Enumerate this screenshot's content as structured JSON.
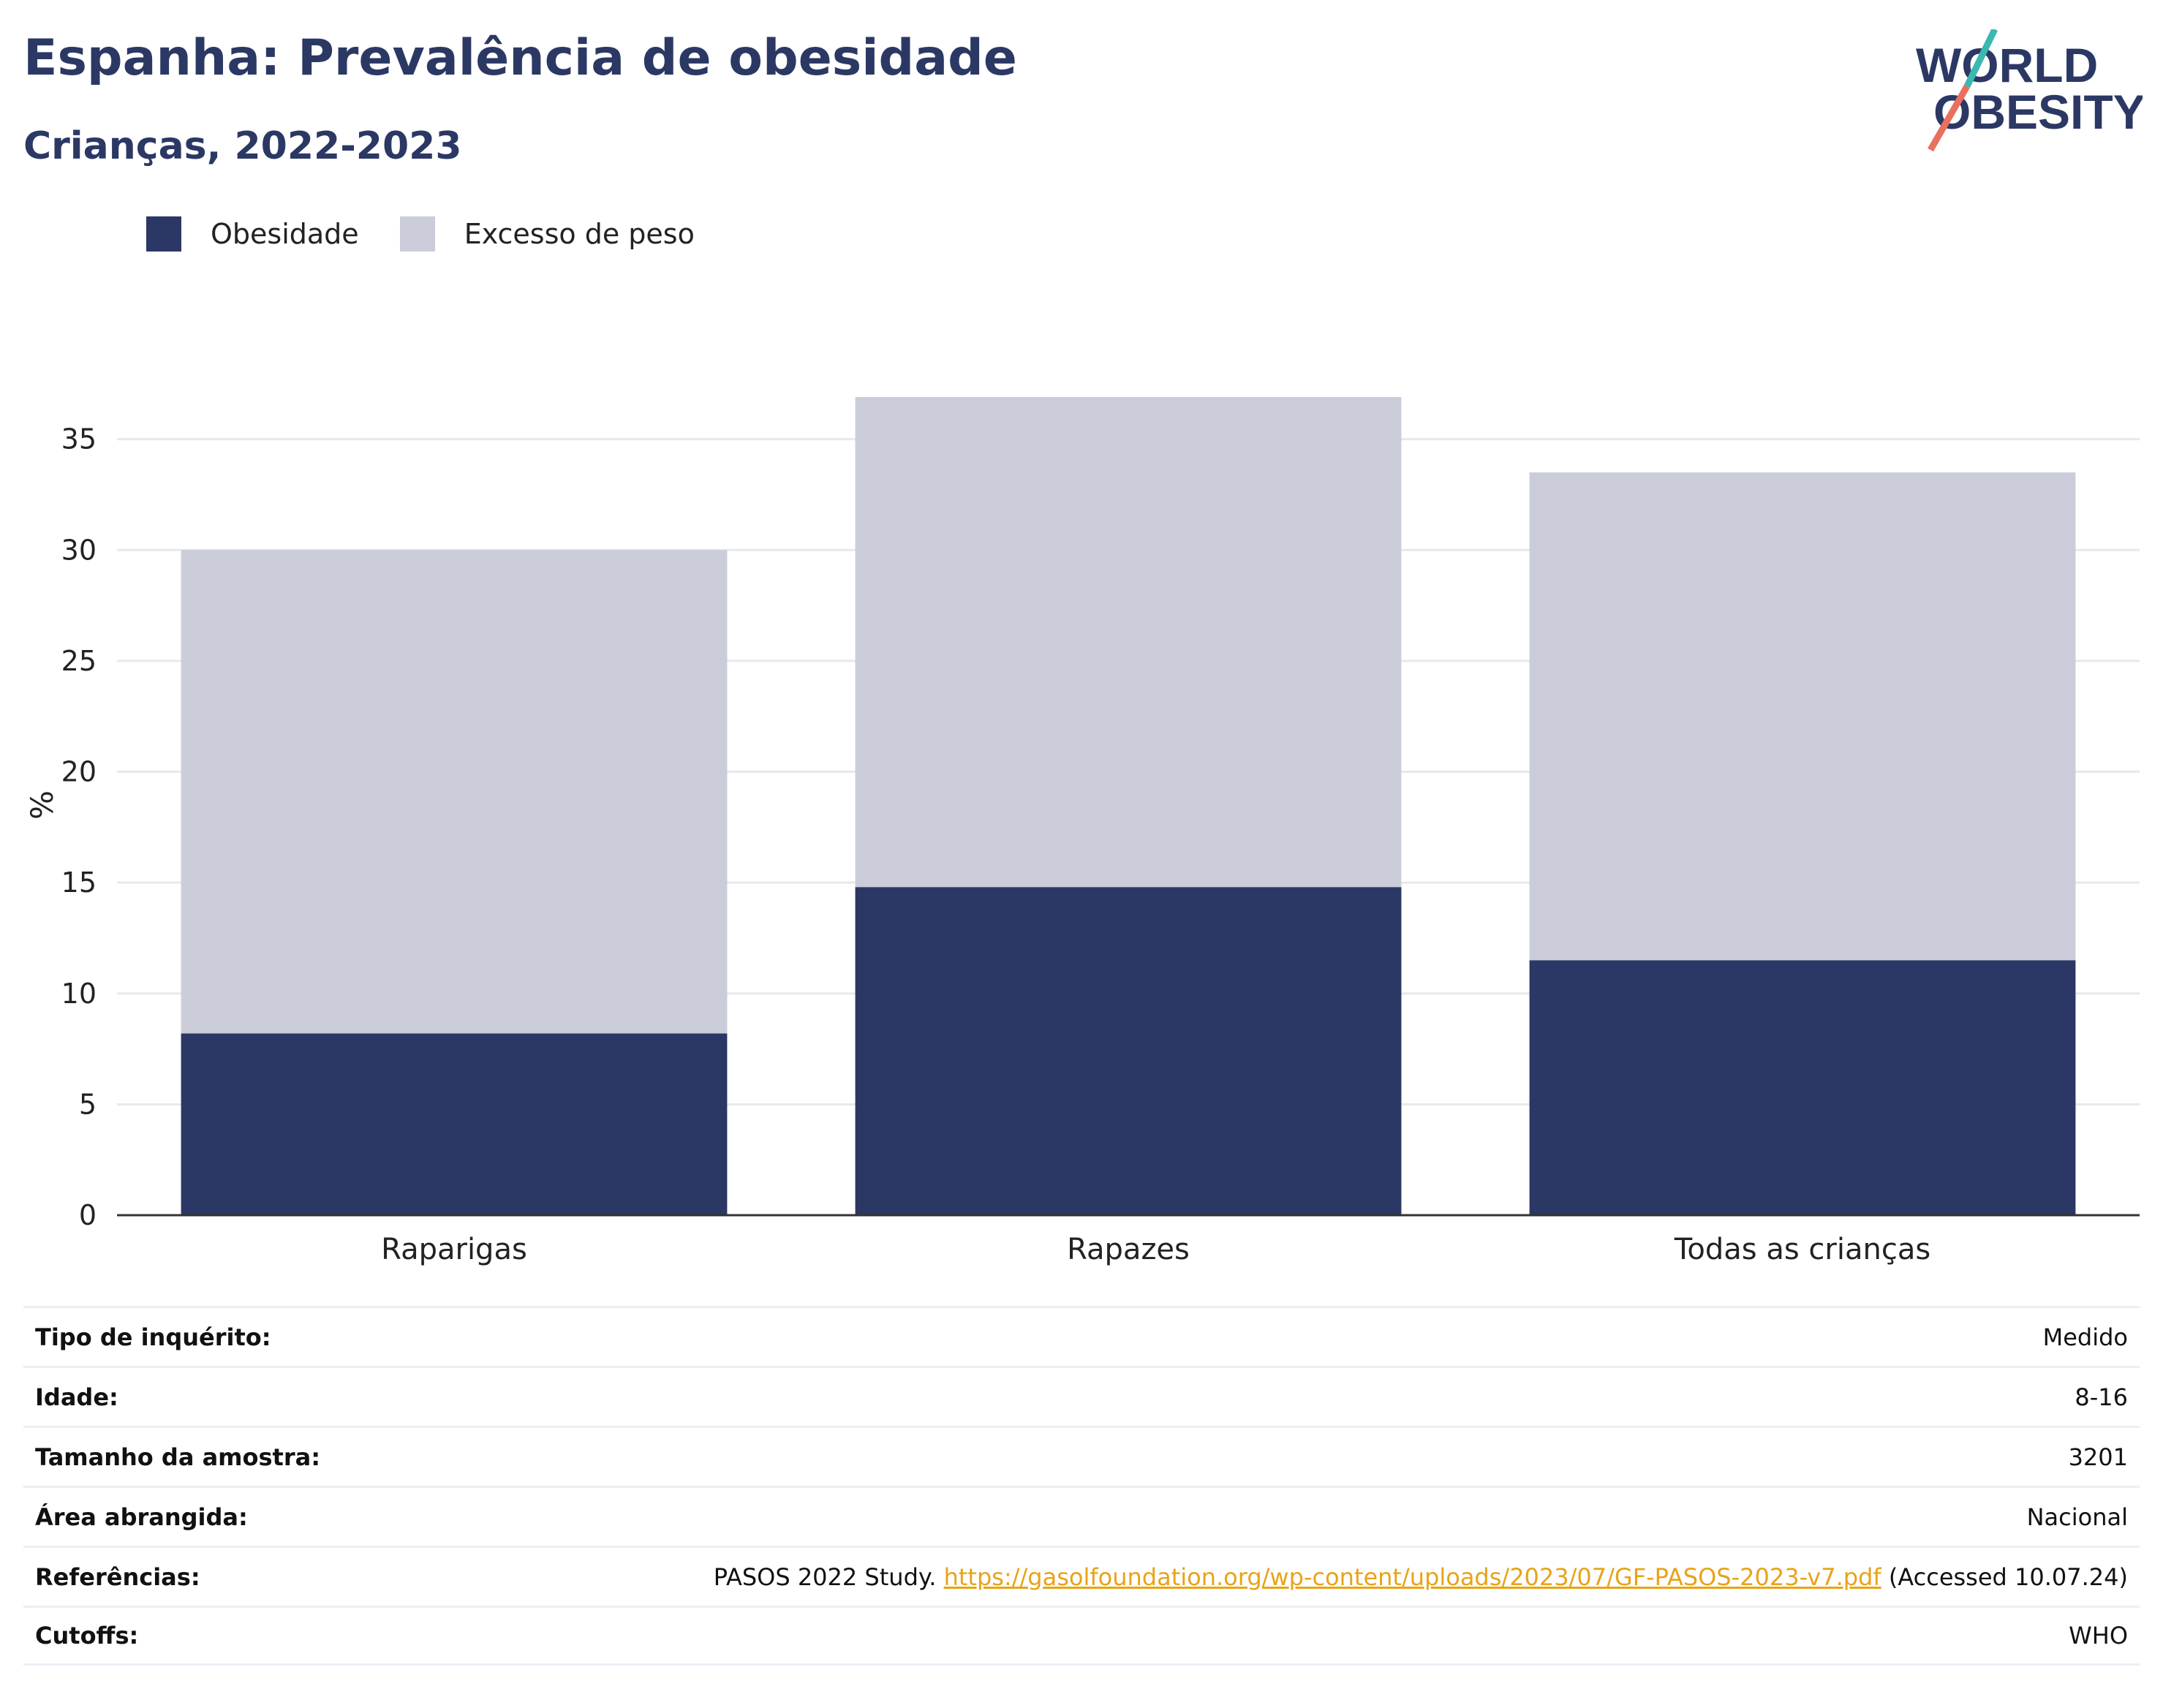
{
  "header": {
    "title": "Espanha: Prevalência de obesidade",
    "subtitle": "Crianças, 2022-2023"
  },
  "logo": {
    "line1": "WORLD",
    "line2": "OBESITY",
    "slash_colors": [
      "#3bb8b0",
      "#e8705f"
    ]
  },
  "legend": [
    {
      "label": "Obesidade",
      "color": "#2b3765"
    },
    {
      "label": "Excesso de peso",
      "color": "#cacdd9"
    }
  ],
  "chart_data": {
    "type": "bar",
    "stacked": true,
    "categories": [
      "Raparigas",
      "Rapazes",
      "Todas as crianças"
    ],
    "series": [
      {
        "name": "Obesidade",
        "values": [
          8.2,
          14.8,
          11.5
        ],
        "color": "#2b3765"
      },
      {
        "name": "Excesso de peso",
        "values": [
          21.8,
          22.1,
          22.0
        ],
        "color": "#cacdd9"
      }
    ],
    "ylabel": "%",
    "yticks": [
      0,
      5,
      10,
      15,
      20,
      25,
      30,
      35
    ],
    "ylim": [
      0,
      37
    ],
    "grid": true
  },
  "info": [
    {
      "label": "Tipo de inquérito:",
      "value": "Medido"
    },
    {
      "label": "Idade:",
      "value": "8-16"
    },
    {
      "label": "Tamanho da amostra:",
      "value": "3201"
    },
    {
      "label": "Área abrangida:",
      "value": "Nacional"
    },
    {
      "label": "Referências:",
      "value_prefix": "PASOS 2022 Study. ",
      "link": "https://gasolfoundation.org/wp-content/uploads/2023/07/GF-PASOS-2023-v7.pdf",
      "value_suffix": " (Accessed 10.07.24)"
    },
    {
      "label": "Cutoffs:",
      "value": "WHO"
    }
  ]
}
